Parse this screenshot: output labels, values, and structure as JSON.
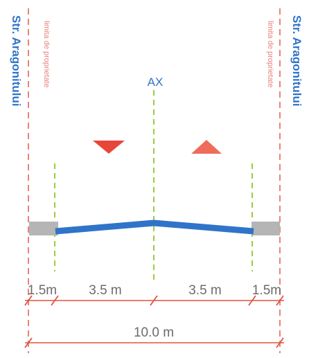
{
  "street_left": "Str. Aragonitului",
  "street_right": "Str. Aragonitului",
  "property_limit_left": "limita de proprietate",
  "property_limit_right": "limita de proprietate",
  "axis_label": "AX",
  "dimensions": {
    "sidewalk_left": "1.5m",
    "lane_left": "3.5 m",
    "lane_right": "3.5 m",
    "sidewalk_right": "1.5m",
    "total": "10.0 m"
  },
  "colors": {
    "street_text": "#2f74c8",
    "property_line": "#e8837a",
    "axis_line": "#9ccc3a",
    "road": "#2f74c8",
    "sidewalk": "#b5b5b5",
    "dimension_line": "#e0523e",
    "arrow": "#e8463a"
  },
  "icons": [
    "arrow-down-icon",
    "arrow-up-icon"
  ]
}
